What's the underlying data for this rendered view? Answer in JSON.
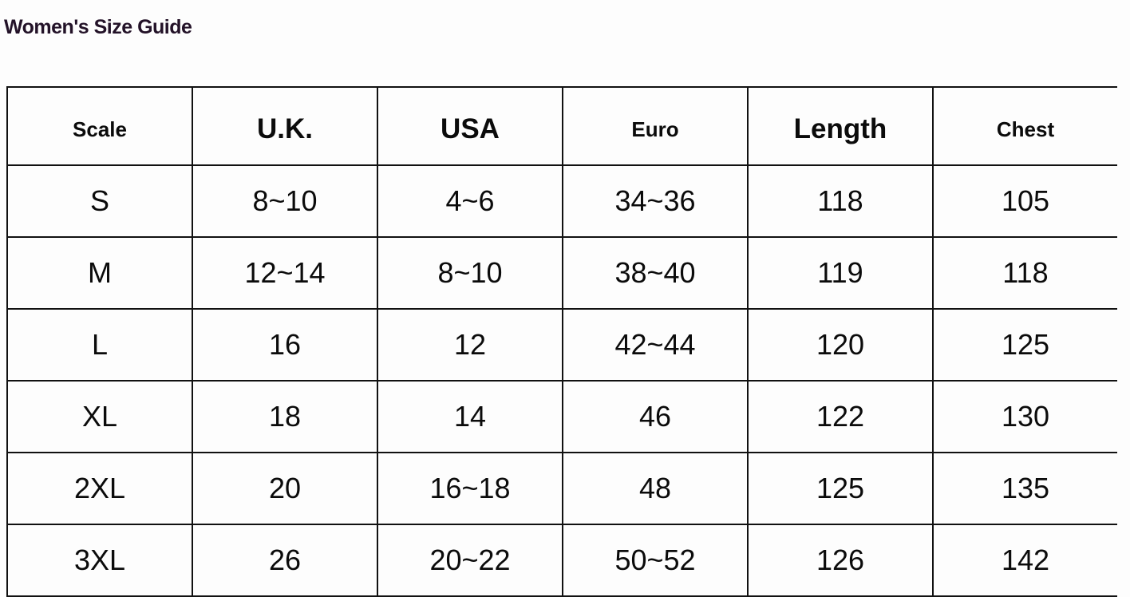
{
  "title": "Women's Size Guide",
  "table": {
    "headers": [
      "Scale",
      "U.K.",
      "USA",
      "Euro",
      "Length",
      "Chest"
    ],
    "rows": [
      [
        "S",
        "8~10",
        "4~6",
        "34~36",
        "118",
        "105"
      ],
      [
        "M",
        "12~14",
        "8~10",
        "38~40",
        "119",
        "118"
      ],
      [
        "L",
        "16",
        "12",
        "42~44",
        "120",
        "125"
      ],
      [
        "XL",
        "18",
        "14",
        "46",
        "122",
        "130"
      ],
      [
        "2XL",
        "20",
        "16~18",
        "48",
        "125",
        "135"
      ],
      [
        "3XL",
        "26",
        "20~22",
        "50~52",
        "126",
        "142"
      ]
    ]
  }
}
